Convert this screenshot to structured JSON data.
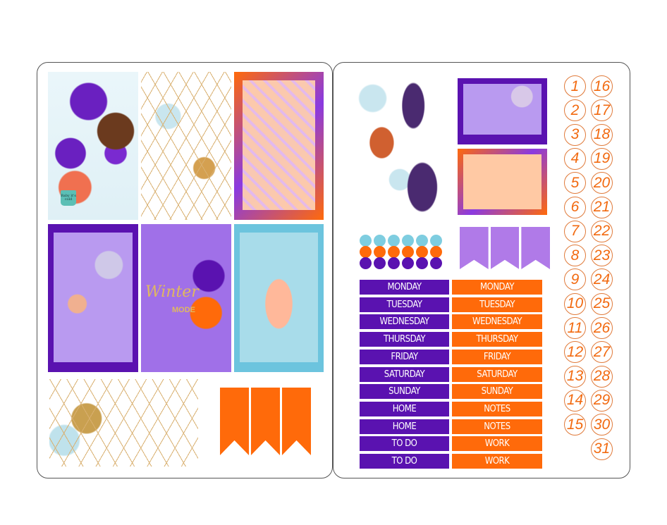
{
  "colors": {
    "purple": "#5a12b0",
    "orange": "#ff6a0a",
    "light_blue": "#7ecde0",
    "lavender": "#b07ae8",
    "peach": "#ffc9a4"
  },
  "artwork": {
    "winter_sticker_line1": "Winter",
    "winter_sticker_line2": "MODE",
    "mug_label": "Baby it's cold"
  },
  "dots": {
    "rows": [
      "light_blue",
      "orange",
      "purple"
    ],
    "per_row": 6
  },
  "day_labels": {
    "purple": [
      "MONDAY",
      "TUESDAY",
      "WEDNESDAY",
      "THURSDAY",
      "FRIDAY",
      "SATURDAY",
      "SUNDAY",
      "HOME",
      "HOME",
      "TO DO",
      "TO DO"
    ],
    "orange": [
      "MONDAY",
      "TUESDAY",
      "WEDNESDAY",
      "THURSDAY",
      "FRIDAY",
      "SATURDAY",
      "SUNDAY",
      "NOTES",
      "NOTES",
      "WORK",
      "WORK"
    ]
  },
  "date_circles": {
    "column1": [
      "1",
      "2",
      "3",
      "4",
      "5",
      "6",
      "7",
      "8",
      "9",
      "10",
      "11",
      "12",
      "13",
      "14",
      "15"
    ],
    "column2": [
      "16",
      "17",
      "18",
      "19",
      "20",
      "21",
      "22",
      "23",
      "24",
      "25",
      "26",
      "27",
      "28",
      "29",
      "30",
      "31"
    ]
  }
}
